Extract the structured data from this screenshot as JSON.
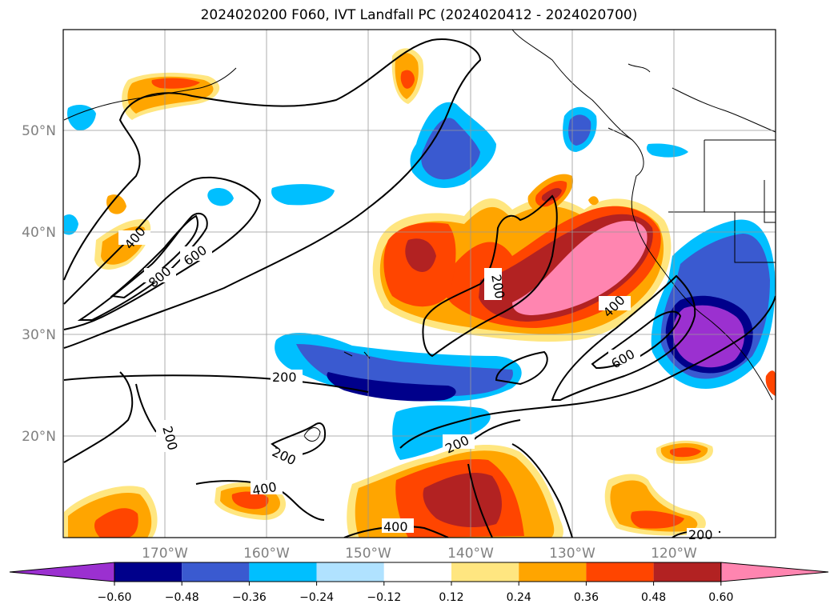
{
  "title": "2024020200 F060, IVT Landfall PC (2024020412 - 2024020700)",
  "lat_labels": [
    "50°N",
    "40°N",
    "30°N",
    "20°N"
  ],
  "lon_labels": [
    "170°W",
    "160°W",
    "150°W",
    "140°W",
    "130°W",
    "120°W"
  ],
  "contour_labels": [
    "400",
    "800",
    "600",
    "200",
    "200",
    "400",
    "600",
    "200",
    "200",
    "200",
    "400",
    "400",
    "200"
  ],
  "colorbar": {
    "ticks": [
      "−0.60",
      "−0.48",
      "−0.36",
      "−0.24",
      "−0.12",
      "0.12",
      "0.24",
      "0.36",
      "0.48",
      "0.60"
    ],
    "colors": [
      "#9b30d0",
      "#00008b",
      "#3a5ad0",
      "#00bfff",
      "#b0e2ff",
      "#ffffff",
      "#ffe680",
      "#ffa500",
      "#ff4500",
      "#b22222",
      "#ff85b0"
    ]
  },
  "palette": {
    "pink": "#ff85b0",
    "darkred": "#b22222",
    "redorange": "#ff4500",
    "orange": "#ffa500",
    "yellow": "#ffe680",
    "lightblue": "#b0e2ff",
    "deepsky": "#00bfff",
    "royal": "#3a5ad0",
    "navy": "#00008b",
    "purple": "#9b30d0",
    "gridline": "#999999",
    "ticklabel": "#808080"
  }
}
